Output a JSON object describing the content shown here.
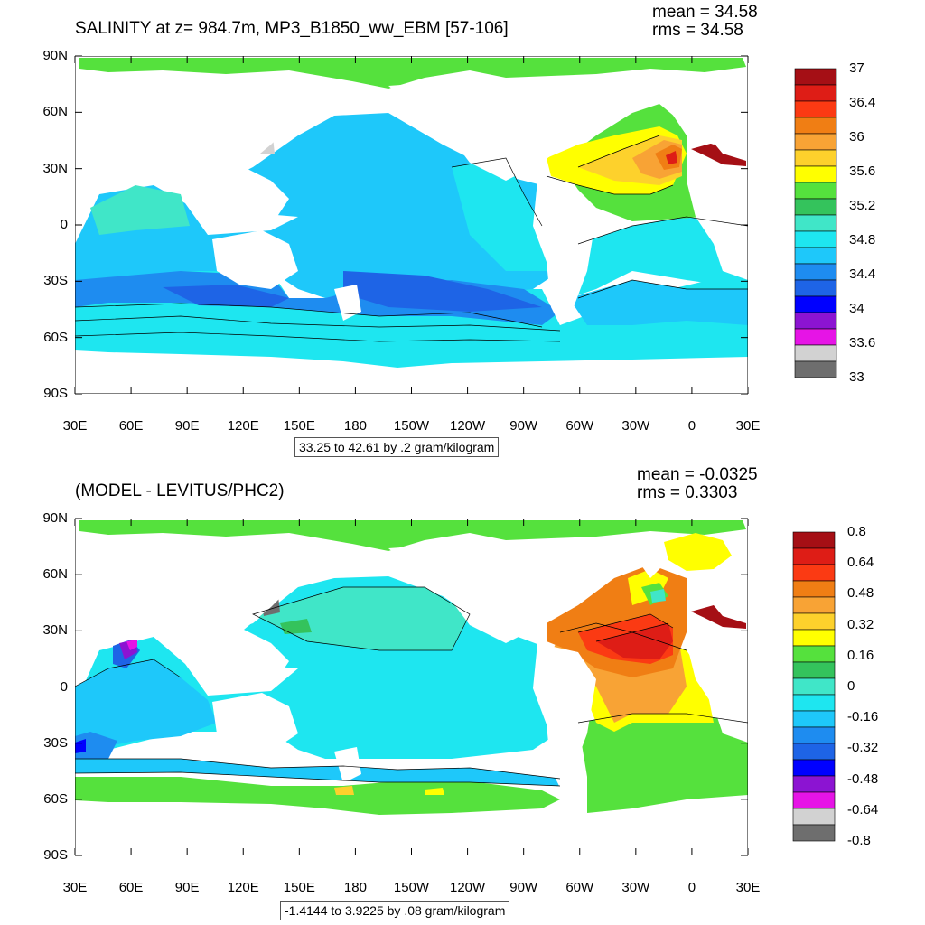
{
  "chart_data": [
    {
      "type": "heatmap",
      "title": "SALINITY at z= 984.7m, MP3_B1850_ww_EBM [57-106]",
      "stats": {
        "mean": "mean = 34.58",
        "rms": "rms = 34.58"
      },
      "xticks": [
        "30E",
        "60E",
        "90E",
        "120E",
        "150E",
        "180",
        "150W",
        "120W",
        "90W",
        "60W",
        "30W",
        "0",
        "30E"
      ],
      "yticks": [
        "90N",
        "60N",
        "30N",
        "0",
        "30S",
        "60S",
        "90S"
      ],
      "footnote": "33.25 to 42.61 by .2 gram/kilogram",
      "colorbar": {
        "labels": [
          "37",
          "36.4",
          "36",
          "35.6",
          "35.2",
          "34.8",
          "34.4",
          "34",
          "33.6",
          "33"
        ],
        "colors": [
          "#a50f15",
          "#de1d16",
          "#fb3a13",
          "#f07e14",
          "#f8a335",
          "#fdd12c",
          "#ffff00",
          "#55e13d",
          "#34c35c",
          "#40e6c8",
          "#1ee6f0",
          "#1ec8fa",
          "#1e8cf0",
          "#1e64e6",
          "#0000ff",
          "#8c14d2",
          "#e614e6",
          "#d2d2d2",
          "#6e6e6e"
        ]
      }
    },
    {
      "type": "heatmap",
      "title": "(MODEL - LEVITUS/PHC2)",
      "stats": {
        "mean": "mean = -0.0325",
        "rms": "rms = 0.3303"
      },
      "xticks": [
        "30E",
        "60E",
        "90E",
        "120E",
        "150E",
        "180",
        "150W",
        "120W",
        "90W",
        "60W",
        "30W",
        "0",
        "30E"
      ],
      "yticks": [
        "90N",
        "60N",
        "30N",
        "0",
        "30S",
        "60S",
        "90S"
      ],
      "footnote": "-1.4144 to 3.9225 by .08 gram/kilogram",
      "colorbar": {
        "labels": [
          "0.8",
          "0.64",
          "0.48",
          "0.32",
          "0.16",
          "0",
          "-0.16",
          "-0.32",
          "-0.48",
          "-0.64",
          "-0.8"
        ],
        "colors": [
          "#a50f15",
          "#de1d16",
          "#fb3a13",
          "#f07e14",
          "#f8a335",
          "#fdd12c",
          "#ffff00",
          "#55e13d",
          "#34c35c",
          "#40e6c8",
          "#1ee6f0",
          "#1ec8fa",
          "#1e8cf0",
          "#1e64e6",
          "#0000ff",
          "#8c14d2",
          "#e614e6",
          "#d2d2d2",
          "#6e6e6e"
        ]
      }
    }
  ]
}
